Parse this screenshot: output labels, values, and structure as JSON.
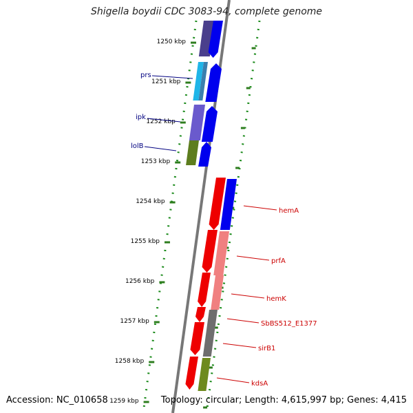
{
  "title": "Shigella boydii CDC 3083-94, complete genome",
  "footer": {
    "accession": "Accession: NC_010658",
    "summary": "Topology: circular; Length: 4,615,997 bp; Genes: 4,415"
  },
  "colors": {
    "backbone": "#777777",
    "tick": "#2e7d1e",
    "dots": "#1a8a1a",
    "left_label": "#000080",
    "right_label": "#cc0000",
    "forward_arrow": "#0000ee"
  },
  "ruler": {
    "ticks": [
      "1250 kbp",
      "1251 kbp",
      "1252 kbp",
      "1253 kbp",
      "1254 kbp",
      "1255 kbp",
      "1256 kbp",
      "1257 kbp",
      "1258 kbp",
      "1259 kbp"
    ]
  },
  "genes_left": [
    {
      "label": "prs"
    },
    {
      "label": "ipk"
    },
    {
      "label": "lolB"
    }
  ],
  "genes_right": [
    {
      "label": "hemA"
    },
    {
      "label": "prfA"
    },
    {
      "label": "hemK"
    },
    {
      "label": "SbBS512_E1377"
    },
    {
      "label": "sirB1"
    },
    {
      "label": "kdsA"
    }
  ]
}
